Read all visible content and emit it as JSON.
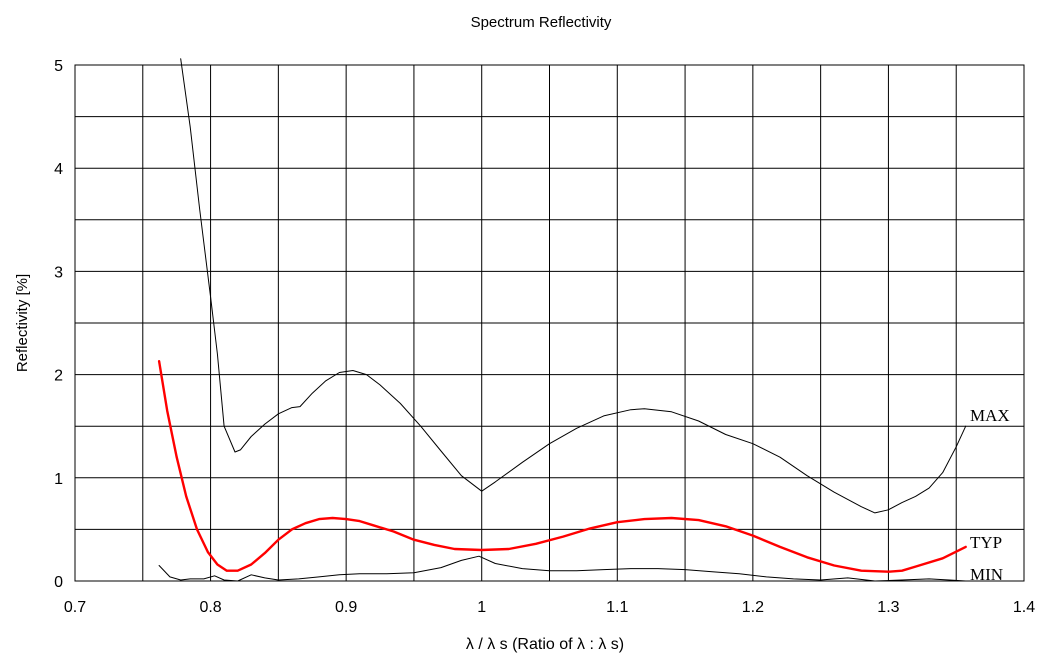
{
  "chart_data": {
    "type": "line",
    "title": "Spectrum Reflectivity",
    "xlabel": "λ / λ s (Ratio of λ : λ s)",
    "ylabel": "Reflectivity [%]",
    "xlim": [
      0.7,
      1.4
    ],
    "ylim": [
      0,
      5
    ],
    "xticks": [
      "0.7",
      "0.8",
      "0.9",
      "1",
      "1.1",
      "1.2",
      "1.3",
      "1.4"
    ],
    "yticks": [
      "0",
      "1",
      "2",
      "3",
      "4",
      "5"
    ],
    "grid": true,
    "grid_x_step": 0.05,
    "grid_y_step": 0.5,
    "series": [
      {
        "name": "MAX",
        "color": "#000000",
        "points": [
          [
            0.778,
            5.06
          ],
          [
            0.785,
            4.4
          ],
          [
            0.792,
            3.6
          ],
          [
            0.8,
            2.75
          ],
          [
            0.805,
            2.2
          ],
          [
            0.81,
            1.5
          ],
          [
            0.818,
            1.25
          ],
          [
            0.822,
            1.27
          ],
          [
            0.83,
            1.4
          ],
          [
            0.84,
            1.52
          ],
          [
            0.85,
            1.62
          ],
          [
            0.86,
            1.68
          ],
          [
            0.866,
            1.69
          ],
          [
            0.875,
            1.82
          ],
          [
            0.885,
            1.94
          ],
          [
            0.895,
            2.02
          ],
          [
            0.905,
            2.04
          ],
          [
            0.915,
            2.0
          ],
          [
            0.925,
            1.9
          ],
          [
            0.94,
            1.72
          ],
          [
            0.955,
            1.5
          ],
          [
            0.97,
            1.26
          ],
          [
            0.985,
            1.02
          ],
          [
            1.0,
            0.87
          ],
          [
            1.01,
            0.96
          ],
          [
            1.03,
            1.15
          ],
          [
            1.05,
            1.33
          ],
          [
            1.07,
            1.48
          ],
          [
            1.09,
            1.6
          ],
          [
            1.11,
            1.66
          ],
          [
            1.12,
            1.67
          ],
          [
            1.14,
            1.64
          ],
          [
            1.16,
            1.55
          ],
          [
            1.18,
            1.42
          ],
          [
            1.2,
            1.33
          ],
          [
            1.22,
            1.2
          ],
          [
            1.24,
            1.02
          ],
          [
            1.26,
            0.86
          ],
          [
            1.28,
            0.72
          ],
          [
            1.29,
            0.66
          ],
          [
            1.3,
            0.69
          ],
          [
            1.31,
            0.76
          ],
          [
            1.32,
            0.82
          ],
          [
            1.33,
            0.9
          ],
          [
            1.34,
            1.05
          ],
          [
            1.35,
            1.3
          ],
          [
            1.357,
            1.5
          ]
        ]
      },
      {
        "name": "TYP",
        "color": "#ff0000",
        "points": [
          [
            0.762,
            2.13
          ],
          [
            0.768,
            1.65
          ],
          [
            0.775,
            1.2
          ],
          [
            0.782,
            0.82
          ],
          [
            0.79,
            0.5
          ],
          [
            0.798,
            0.28
          ],
          [
            0.805,
            0.16
          ],
          [
            0.812,
            0.1
          ],
          [
            0.82,
            0.1
          ],
          [
            0.83,
            0.16
          ],
          [
            0.84,
            0.27
          ],
          [
            0.85,
            0.4
          ],
          [
            0.86,
            0.5
          ],
          [
            0.87,
            0.56
          ],
          [
            0.88,
            0.6
          ],
          [
            0.89,
            0.61
          ],
          [
            0.9,
            0.6
          ],
          [
            0.91,
            0.58
          ],
          [
            0.92,
            0.54
          ],
          [
            0.935,
            0.48
          ],
          [
            0.95,
            0.4
          ],
          [
            0.965,
            0.35
          ],
          [
            0.98,
            0.31
          ],
          [
            1.0,
            0.3
          ],
          [
            1.02,
            0.31
          ],
          [
            1.04,
            0.36
          ],
          [
            1.06,
            0.43
          ],
          [
            1.08,
            0.51
          ],
          [
            1.1,
            0.57
          ],
          [
            1.12,
            0.6
          ],
          [
            1.14,
            0.61
          ],
          [
            1.16,
            0.59
          ],
          [
            1.18,
            0.53
          ],
          [
            1.2,
            0.44
          ],
          [
            1.22,
            0.33
          ],
          [
            1.24,
            0.23
          ],
          [
            1.26,
            0.15
          ],
          [
            1.28,
            0.1
          ],
          [
            1.3,
            0.09
          ],
          [
            1.31,
            0.1
          ],
          [
            1.32,
            0.14
          ],
          [
            1.34,
            0.22
          ],
          [
            1.357,
            0.33
          ]
        ]
      },
      {
        "name": "MIN",
        "color": "#000000",
        "points": [
          [
            0.762,
            0.15
          ],
          [
            0.77,
            0.04
          ],
          [
            0.778,
            0.01
          ],
          [
            0.785,
            0.02
          ],
          [
            0.795,
            0.02
          ],
          [
            0.803,
            0.05
          ],
          [
            0.81,
            0.01
          ],
          [
            0.82,
            0.0
          ],
          [
            0.83,
            0.06
          ],
          [
            0.84,
            0.03
          ],
          [
            0.85,
            0.01
          ],
          [
            0.865,
            0.02
          ],
          [
            0.88,
            0.04
          ],
          [
            0.895,
            0.06
          ],
          [
            0.91,
            0.07
          ],
          [
            0.93,
            0.07
          ],
          [
            0.95,
            0.08
          ],
          [
            0.97,
            0.13
          ],
          [
            0.985,
            0.2
          ],
          [
            0.998,
            0.24
          ],
          [
            1.01,
            0.17
          ],
          [
            1.03,
            0.12
          ],
          [
            1.05,
            0.1
          ],
          [
            1.07,
            0.1
          ],
          [
            1.09,
            0.11
          ],
          [
            1.11,
            0.12
          ],
          [
            1.13,
            0.12
          ],
          [
            1.15,
            0.11
          ],
          [
            1.17,
            0.09
          ],
          [
            1.19,
            0.07
          ],
          [
            1.21,
            0.04
          ],
          [
            1.23,
            0.02
          ],
          [
            1.25,
            0.01
          ],
          [
            1.27,
            0.03
          ],
          [
            1.29,
            0.0
          ],
          [
            1.31,
            0.01
          ],
          [
            1.33,
            0.02
          ],
          [
            1.345,
            0.01
          ],
          [
            1.357,
            0.0
          ]
        ]
      }
    ],
    "series_labels": [
      "MAX",
      "TYP",
      "MIN"
    ]
  }
}
